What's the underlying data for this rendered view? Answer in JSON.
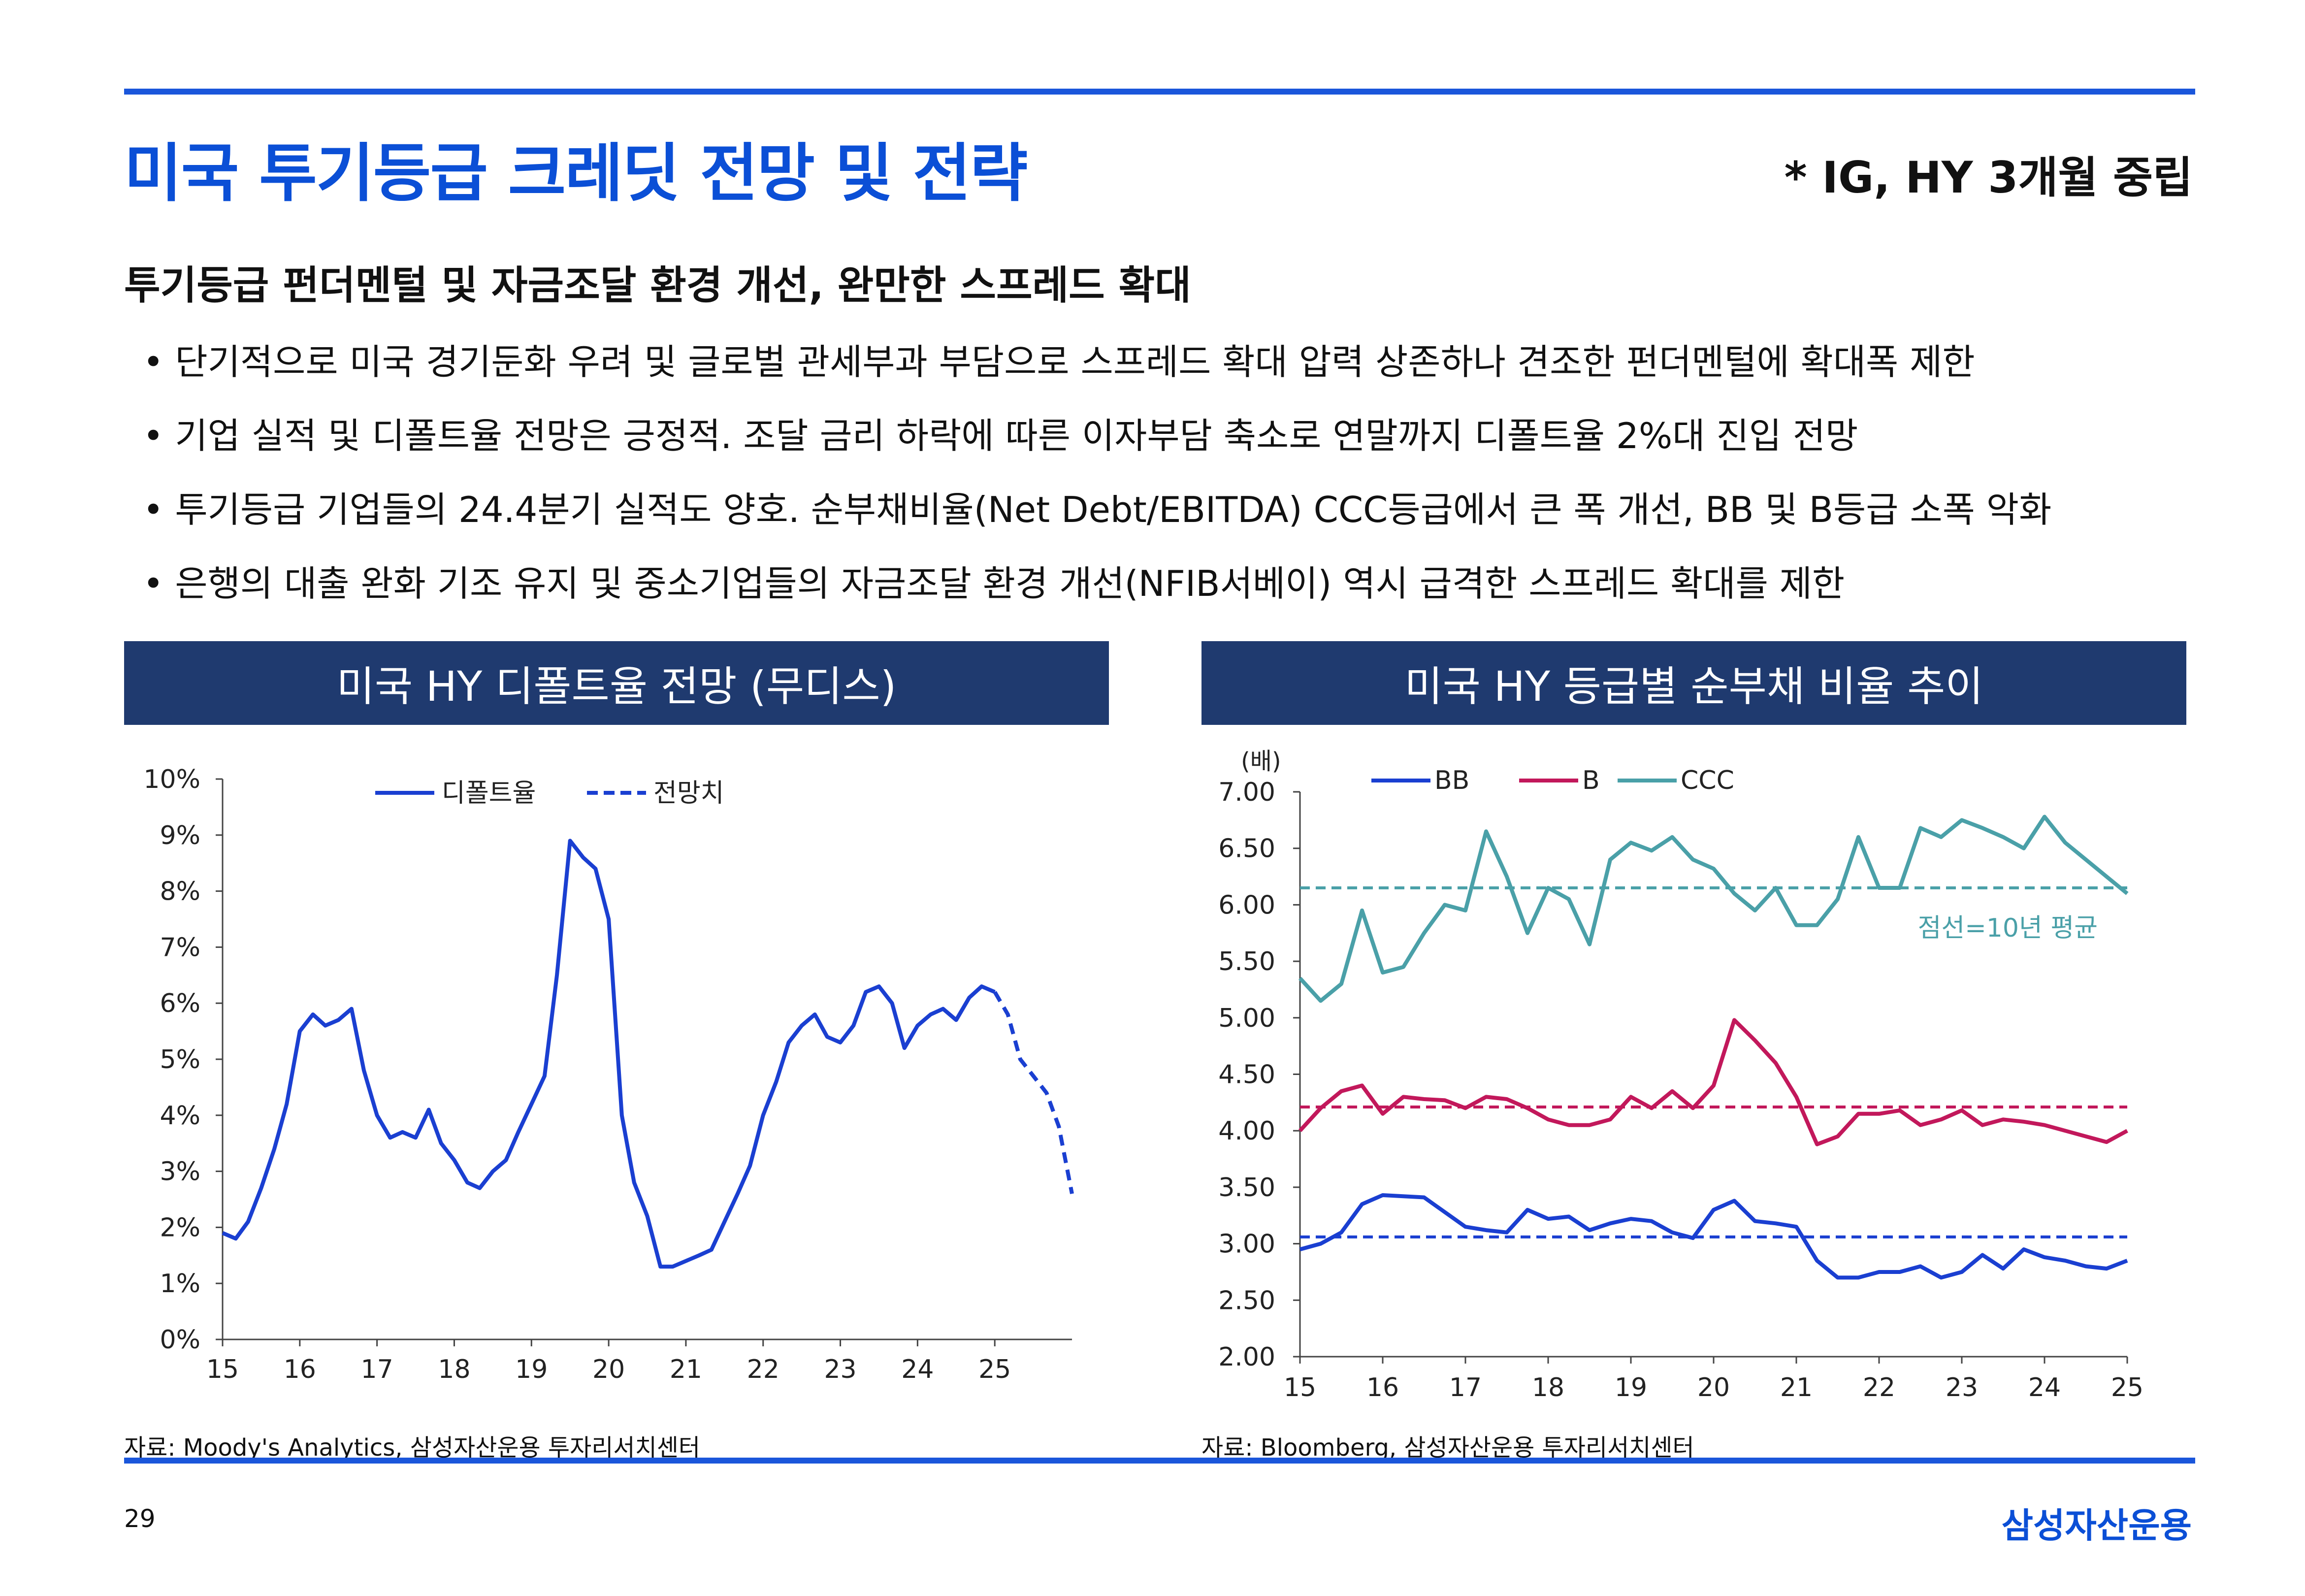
{
  "title": "미국 투기등급 크레딧 전망 및 전략",
  "note": "* IG, HY 3개월 중립",
  "headline": "투기등급 펀더멘털 및 자금조달 환경 개선, 완만한 스프레드 확대",
  "bullets": [
    "단기적으로 미국 경기둔화 우려 및 글로벌 관세부과 부담으로 스프레드 확대 압력 상존하나 견조한 펀더멘털에 확대폭 제한",
    "기업 실적 및 디폴트율 전망은 긍정적. 조달 금리 하락에 따른 이자부담 축소로 연말까지 디폴트율 2%대 진입 전망",
    "투기등급 기업들의 24.4분기 실적도 양호. 순부채비율(Net Debt/EBITDA) CCC등급에서 큰 폭 개선, BB 및 B등급 소폭 악화",
    "은행의 대출 완화 기조 유지 및 중소기업들의 자금조달 환경 개선(NFIB서베이) 역시 급격한 스프레드 확대를 제한"
  ],
  "bullet_marker": "•",
  "footer": {
    "page": "29",
    "brand": "삼성자산운용"
  },
  "colors": {
    "accent": "#0b4fd6",
    "band": "#1f3a6f",
    "bb": "#1a3fd1",
    "b": "#c2185b",
    "ccc": "#4aa0a8"
  },
  "chart_data": [
    {
      "type": "line",
      "title": "미국 HY 디폴트율 전망 (무디스)",
      "source": "자료: Moody's Analytics, 삼성자산운용 투자리서치센터",
      "ylim": [
        0,
        10
      ],
      "y_ticks": [
        "0%",
        "1%",
        "2%",
        "3%",
        "4%",
        "5%",
        "6%",
        "7%",
        "8%",
        "9%",
        "10%"
      ],
      "x_ticks": [
        "15",
        "16",
        "17",
        "18",
        "19",
        "20",
        "21",
        "22",
        "23",
        "24",
        "25"
      ],
      "xlim": [
        15,
        26
      ],
      "legend_position": "top",
      "series": [
        {
          "name": "디폴트율",
          "style": "solid",
          "x": [
            15,
            15.17,
            15.33,
            15.5,
            15.67,
            15.83,
            16,
            16.17,
            16.33,
            16.5,
            16.67,
            16.83,
            17,
            17.17,
            17.33,
            17.5,
            17.67,
            17.83,
            18,
            18.17,
            18.33,
            18.5,
            18.67,
            18.83,
            19,
            19.17,
            19.33,
            19.5,
            19.67,
            19.83,
            20,
            20.17,
            20.33,
            20.5,
            20.67,
            20.83,
            21,
            21.17,
            21.33,
            21.5,
            21.67,
            21.83,
            22,
            22.17,
            22.33,
            22.5,
            22.67,
            22.83,
            23,
            23.17,
            23.33,
            23.5,
            23.67,
            23.83,
            24,
            24.17,
            24.33,
            24.5,
            24.67,
            24.83,
            25
          ],
          "y": [
            1.9,
            1.8,
            2.1,
            2.7,
            3.4,
            4.2,
            5.5,
            5.8,
            5.6,
            5.7,
            5.9,
            4.8,
            4.0,
            3.6,
            3.7,
            3.6,
            4.1,
            3.5,
            3.2,
            2.8,
            2.7,
            3.0,
            3.2,
            3.7,
            4.2,
            4.7,
            6.5,
            8.9,
            8.6,
            8.4,
            7.5,
            4.0,
            2.8,
            2.2,
            1.3,
            1.3,
            1.4,
            1.5,
            1.6,
            2.1,
            2.6,
            3.1,
            4.0,
            4.6,
            5.3,
            5.6,
            5.8,
            5.4,
            5.3,
            5.6,
            6.2,
            6.3,
            6.0,
            5.2,
            5.6,
            5.8,
            5.9,
            5.7,
            6.1,
            6.3,
            6.2
          ]
        },
        {
          "name": "전망치",
          "style": "dashed",
          "x": [
            25,
            25.17,
            25.33,
            25.5,
            25.67,
            25.83,
            26
          ],
          "y": [
            6.2,
            5.8,
            5.0,
            4.7,
            4.4,
            3.8,
            2.6
          ]
        }
      ]
    },
    {
      "type": "line",
      "title": "미국 HY 등급별 순부채 비율 추이",
      "source": "자료: Bloomberg, 삼성자산운용 투자리서치센터",
      "ylabel": "(배)",
      "ylim": [
        2,
        7
      ],
      "y_ticks": [
        "2.00",
        "2.50",
        "3.00",
        "3.50",
        "4.00",
        "4.50",
        "5.00",
        "5.50",
        "6.00",
        "6.50",
        "7.00"
      ],
      "x_ticks": [
        "15",
        "16",
        "17",
        "18",
        "19",
        "20",
        "21",
        "22",
        "23",
        "24",
        "25"
      ],
      "xlim": [
        15,
        25
      ],
      "legend_position": "top",
      "annotation": "점선=10년 평균",
      "averages": {
        "BB": 3.06,
        "B": 4.21,
        "CCC": 6.15
      },
      "x": [
        15,
        15.25,
        15.5,
        15.75,
        16,
        16.25,
        16.5,
        16.75,
        17,
        17.25,
        17.5,
        17.75,
        18,
        18.25,
        18.5,
        18.75,
        19,
        19.25,
        19.5,
        19.75,
        20,
        20.25,
        20.5,
        20.75,
        21,
        21.25,
        21.5,
        21.75,
        22,
        22.25,
        22.5,
        22.75,
        23,
        23.25,
        23.5,
        23.75,
        24,
        24.25,
        24.5,
        24.75,
        25
      ],
      "series": [
        {
          "name": "BB",
          "values": [
            2.95,
            3.0,
            3.1,
            3.35,
            3.43,
            3.42,
            3.41,
            3.28,
            3.15,
            3.12,
            3.1,
            3.3,
            3.22,
            3.24,
            3.12,
            3.18,
            3.22,
            3.2,
            3.1,
            3.05,
            3.3,
            3.38,
            3.2,
            3.18,
            3.15,
            2.85,
            2.7,
            2.7,
            2.75,
            2.75,
            2.8,
            2.7,
            2.75,
            2.9,
            2.78,
            2.95,
            2.88,
            2.85,
            2.8,
            2.78,
            2.85
          ]
        },
        {
          "name": "B",
          "values": [
            4.0,
            4.2,
            4.35,
            4.4,
            4.15,
            4.3,
            4.28,
            4.27,
            4.2,
            4.3,
            4.28,
            4.2,
            4.1,
            4.05,
            4.05,
            4.1,
            4.3,
            4.2,
            4.35,
            4.2,
            4.4,
            4.98,
            4.8,
            4.6,
            4.3,
            3.88,
            3.95,
            4.15,
            4.15,
            4.18,
            4.05,
            4.1,
            4.18,
            4.05,
            4.1,
            4.08,
            4.05,
            4.0,
            3.95,
            3.9,
            4.0
          ]
        },
        {
          "name": "CCC",
          "values": [
            5.35,
            5.15,
            5.3,
            5.95,
            5.4,
            5.45,
            5.75,
            6.0,
            5.95,
            6.65,
            6.25,
            5.75,
            6.15,
            6.05,
            5.65,
            6.4,
            6.55,
            6.48,
            6.6,
            6.4,
            6.32,
            6.1,
            5.95,
            6.15,
            5.82,
            5.82,
            6.05,
            6.6,
            6.15,
            6.15,
            6.68,
            6.6,
            6.75,
            6.68,
            6.6,
            6.5,
            6.78,
            6.55,
            6.4,
            6.25,
            6.1
          ]
        }
      ]
    }
  ]
}
